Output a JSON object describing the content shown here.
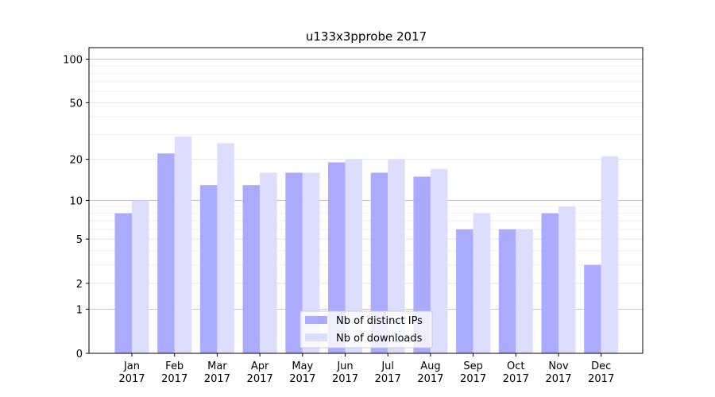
{
  "chart_data": {
    "type": "bar",
    "title": "u133x3pprobe 2017",
    "xlabel": "",
    "ylabel": "",
    "y_scale": "log(1+y)",
    "ylim": [
      0,
      100
    ],
    "yticks": [
      0,
      1,
      2,
      5,
      10,
      20,
      50,
      100
    ],
    "categories": [
      "Jan\n2017",
      "Feb\n2017",
      "Mar\n2017",
      "Apr\n2017",
      "May\n2017",
      "Jun\n2017",
      "Jul\n2017",
      "Aug\n2017",
      "Sep\n2017",
      "Oct\n2017",
      "Nov\n2017",
      "Dec\n2017"
    ],
    "series": [
      {
        "name": "Nb of distinct IPs",
        "color": "#aaaaff",
        "values": [
          8,
          22,
          13,
          13,
          16,
          19,
          16,
          15,
          6,
          6,
          8,
          3
        ]
      },
      {
        "name": "Nb of downloads",
        "color": "#ddddff",
        "values": [
          10,
          29,
          26,
          16,
          16,
          20,
          20,
          17,
          8,
          6,
          9,
          21
        ]
      }
    ],
    "grid": true,
    "legend_position": "lower-center"
  }
}
